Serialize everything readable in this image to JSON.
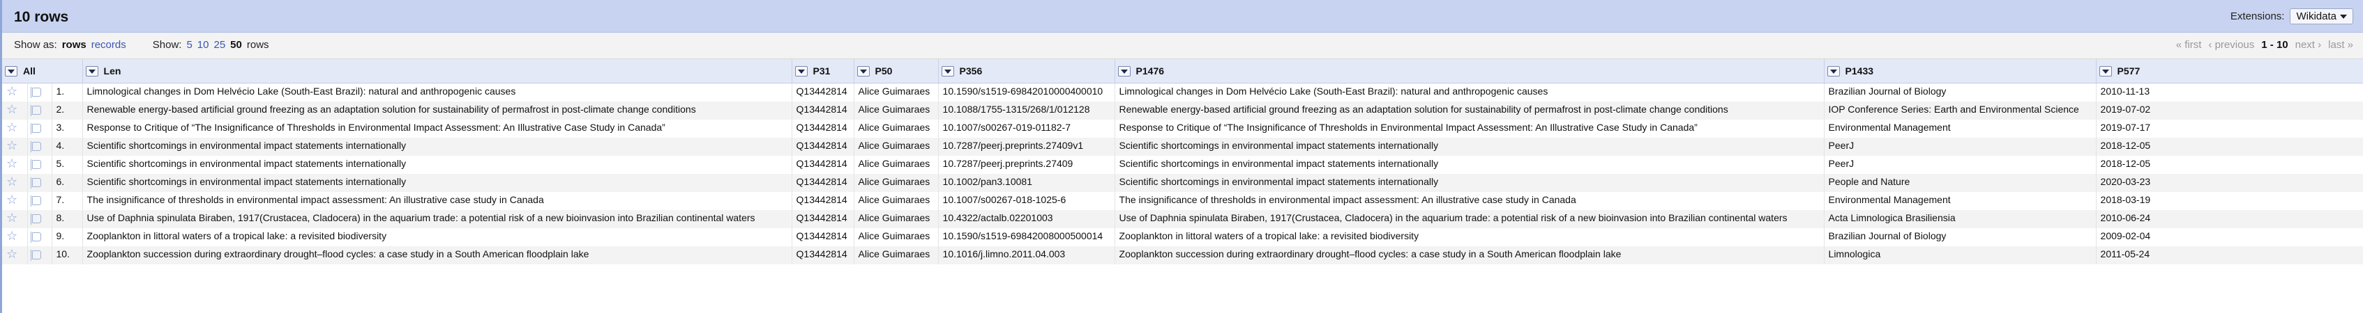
{
  "header": {
    "title": "10 rows",
    "extensions_label": "Extensions:",
    "extensions_value": "Wikidata"
  },
  "controls": {
    "show_as_label": "Show as:",
    "show_as_rows": "rows",
    "show_as_records": "records",
    "show_label": "Show:",
    "page_sizes": [
      "5",
      "10",
      "25",
      "50"
    ],
    "page_size_suffix": "rows"
  },
  "pager": {
    "first": "« first",
    "previous": "‹ previous",
    "range": "1 - 10",
    "next": "next ›",
    "last": "last »"
  },
  "table": {
    "all_label": "All",
    "columns": [
      "Len",
      "P31",
      "P50",
      "P356",
      "P1476",
      "P1433",
      "P577"
    ],
    "rows": [
      {
        "n": "1.",
        "len": "Limnological changes in Dom Helvécio Lake (South-East Brazil): natural and anthropogenic causes",
        "p31": "Q13442814",
        "p50": "Alice Guimaraes",
        "p356": "10.1590/s1519-69842010000400010",
        "p1476": "Limnological changes in Dom Helvécio Lake (South-East Brazil): natural and anthropogenic causes",
        "p1433": "Brazilian Journal of Biology",
        "p577": "2010-11-13"
      },
      {
        "n": "2.",
        "len": "Renewable energy-based artificial ground freezing as an adaptation solution for sustainability of permafrost in post-climate change conditions",
        "p31": "Q13442814",
        "p50": "Alice Guimaraes",
        "p356": "10.1088/1755-1315/268/1/012128",
        "p1476": "Renewable energy-based artificial ground freezing as an adaptation solution for sustainability of permafrost in post-climate change conditions",
        "p1433": "IOP Conference Series: Earth and Environmental Science",
        "p577": "2019-07-02"
      },
      {
        "n": "3.",
        "len": "Response to Critique of “The Insignificance of Thresholds in Environmental Impact Assessment: An Illustrative Case Study in Canada”",
        "p31": "Q13442814",
        "p50": "Alice Guimaraes",
        "p356": "10.1007/s00267-019-01182-7",
        "p1476": "Response to Critique of “The Insignificance of Thresholds in Environmental Impact Assessment: An Illustrative Case Study in Canada”",
        "p1433": "Environmental Management",
        "p577": "2019-07-17"
      },
      {
        "n": "4.",
        "len": "Scientific shortcomings in environmental impact statements internationally",
        "p31": "Q13442814",
        "p50": "Alice Guimaraes",
        "p356": "10.7287/peerj.preprints.27409v1",
        "p1476": "Scientific shortcomings in environmental impact statements internationally",
        "p1433": "PeerJ",
        "p577": "2018-12-05"
      },
      {
        "n": "5.",
        "len": "Scientific shortcomings in environmental impact statements internationally",
        "p31": "Q13442814",
        "p50": "Alice Guimaraes",
        "p356": "10.7287/peerj.preprints.27409",
        "p1476": "Scientific shortcomings in environmental impact statements internationally",
        "p1433": "PeerJ",
        "p577": "2018-12-05"
      },
      {
        "n": "6.",
        "len": "Scientific shortcomings in environmental impact statements internationally",
        "p31": "Q13442814",
        "p50": "Alice Guimaraes",
        "p356": "10.1002/pan3.10081",
        "p1476": "Scientific shortcomings in environmental impact statements internationally",
        "p1433": "People and Nature",
        "p577": "2020-03-23"
      },
      {
        "n": "7.",
        "len": "The insignificance of thresholds in environmental impact assessment: An illustrative case study in Canada",
        "p31": "Q13442814",
        "p50": "Alice Guimaraes",
        "p356": "10.1007/s00267-018-1025-6",
        "p1476": "The insignificance of thresholds in environmental impact assessment: An illustrative case study in Canada",
        "p1433": "Environmental Management",
        "p577": "2018-03-19"
      },
      {
        "n": "8.",
        "len": "Use of Daphnia spinulata Biraben, 1917(Crustacea, Cladocera) in the aquarium trade: a potential risk of a new bioinvasion into Brazilian continental waters",
        "p31": "Q13442814",
        "p50": "Alice Guimaraes",
        "p356": "10.4322/actalb.02201003",
        "p1476": "Use of Daphnia spinulata Biraben, 1917(Crustacea, Cladocera) in the aquarium trade: a potential risk of a new bioinvasion into Brazilian continental waters",
        "p1433": "Acta Limnologica Brasiliensia",
        "p577": "2010-06-24"
      },
      {
        "n": "9.",
        "len": "Zooplankton in littoral waters of a tropical lake: a revisited biodiversity",
        "p31": "Q13442814",
        "p50": "Alice Guimaraes",
        "p356": "10.1590/s1519-69842008000500014",
        "p1476": "Zooplankton in littoral waters of a tropical lake: a revisited biodiversity",
        "p1433": "Brazilian Journal of Biology",
        "p577": "2009-02-04"
      },
      {
        "n": "10.",
        "len": "Zooplankton succession during extraordinary drought–flood cycles: a case study in a South American floodplain lake",
        "p31": "Q13442814",
        "p50": "Alice Guimaraes",
        "p356": "10.1016/j.limno.2011.04.003",
        "p1476": "Zooplankton succession during extraordinary drought–flood cycles: a case study in a South American floodplain lake",
        "p1433": "Limnologica",
        "p577": "2011-05-24"
      }
    ]
  },
  "colors": {
    "header_bg": "#c7d3f0",
    "link": "#3b55b5",
    "column_header_bg": "#e3e9f7",
    "stripe": "#f3f3f3"
  },
  "icons": {
    "row_star": "star-icon",
    "row_flag": "flag-icon",
    "column_menu": "chevron-down-icon"
  }
}
